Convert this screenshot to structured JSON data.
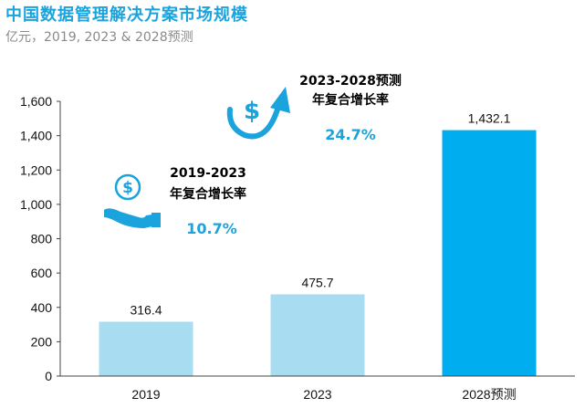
{
  "chart_data": {
    "type": "bar",
    "title": "中国数据管理解决方案市场规模",
    "subtitle": "亿元，2019, 2023 & 2028预测",
    "categories": [
      "2019",
      "2023",
      "2028预测"
    ],
    "values": [
      316.4,
      475.7,
      1432.1
    ],
    "value_labels": [
      "316.4",
      "475.7",
      "1,432.1"
    ],
    "bar_colors": [
      "#a8dcf1",
      "#a8dcf1",
      "#00aeef"
    ],
    "ylim": [
      0,
      1600
    ],
    "yticks": [
      0,
      200,
      400,
      600,
      800,
      1000,
      1200,
      1400,
      1600
    ],
    "ytick_labels": [
      "0",
      "200",
      "400",
      "600",
      "800",
      "1,000",
      "1,200",
      "1,400",
      "1,600"
    ],
    "grid": false,
    "xlabel": "",
    "ylabel": "",
    "annotations": [
      {
        "id": "cagr-2019-2023",
        "line1": "2019-2023",
        "line2": "年复合增长率",
        "value": "10.7%",
        "icon": "hand-coin-icon"
      },
      {
        "id": "cagr-2023-2028",
        "line1": "2023-2028预测",
        "line2": "年复合增长率",
        "value": "24.7%",
        "icon": "dollar-growth-arrow-icon"
      }
    ],
    "accent_color": "#1aa3dc"
  }
}
